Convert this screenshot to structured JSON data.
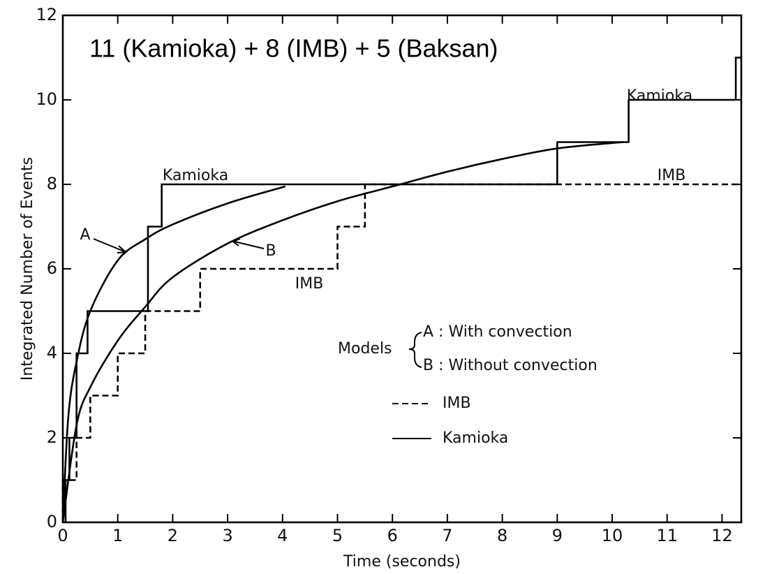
{
  "chart_data": {
    "type": "line",
    "title": "11 (Kamioka) + 8 (IMB) + 5 (Baksan)",
    "xlabel": "Time (seconds)",
    "ylabel": "Integrated Number of Events",
    "xlim": [
      0,
      12.35
    ],
    "ylim": [
      0,
      12
    ],
    "xticks": [
      0,
      1,
      2,
      3,
      4,
      5,
      6,
      7,
      8,
      9,
      10,
      11,
      12
    ],
    "yticks": [
      0,
      2,
      4,
      6,
      8,
      10,
      12
    ],
    "series": [
      {
        "name": "Kamioka",
        "color": "#000000",
        "drawstyle": "steps",
        "dash": false,
        "x": [
          0.05,
          0.12,
          0.25,
          0.45,
          1.55,
          1.8,
          9.0,
          10.3,
          12.25
        ],
        "values": [
          1,
          2,
          4,
          5,
          7,
          8,
          9,
          10,
          11
        ]
      },
      {
        "name": "IMB",
        "color": "#000000",
        "drawstyle": "steps",
        "dash": true,
        "x": [
          0,
          0.25,
          0.5,
          1.0,
          1.5,
          2.5,
          5.0,
          5.5
        ],
        "values": [
          1,
          2,
          3,
          4,
          5,
          6,
          7,
          8
        ]
      },
      {
        "name": "A",
        "color": "#000000",
        "drawstyle": "smooth",
        "dash": false,
        "x": [
          0,
          0.1,
          0.25,
          0.5,
          1,
          1.5,
          2,
          3,
          4.05
        ],
        "values": [
          0,
          2.5,
          3.8,
          5.0,
          6.2,
          6.7,
          7.05,
          7.55,
          7.95
        ]
      },
      {
        "name": "B",
        "color": "#000000",
        "drawstyle": "smooth",
        "dash": false,
        "x": [
          0,
          0.25,
          0.5,
          1,
          1.5,
          2,
          3,
          4,
          5,
          6,
          7,
          8,
          9,
          10.2
        ],
        "values": [
          0,
          2.3,
          3.2,
          4.3,
          5.1,
          5.8,
          6.6,
          7.15,
          7.6,
          7.95,
          8.3,
          8.6,
          8.85,
          9.0
        ]
      }
    ],
    "annotations": [
      "Kamioka",
      "Kamioka",
      "IMB",
      "IMB"
    ],
    "legend": {
      "heading": "Models",
      "entries": [
        "A : With convection",
        "B : Without convection"
      ]
    }
  }
}
